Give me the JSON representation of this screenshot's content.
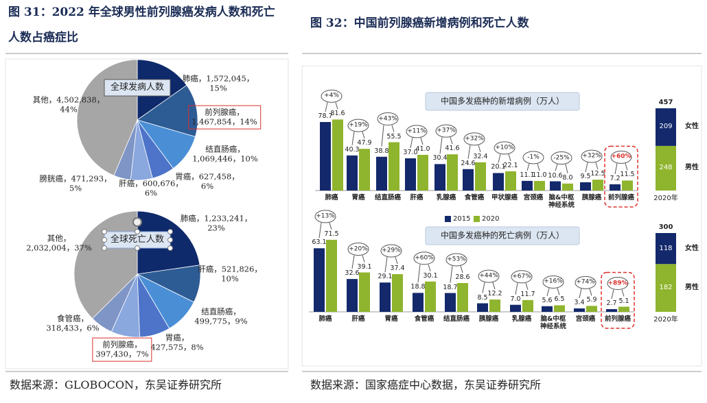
{
  "figures": [
    {
      "title": "图 31：2022 年全球男性前列腺癌发病人数和死亡人数占癌症比",
      "source": "数据来源：GLOBOCON，东吴证券研究所"
    },
    {
      "title": "图 32：中国前列腺癌新增病例和死亡人数",
      "source": "数据来源：国家癌症中心数据，东吴证券研究所"
    }
  ],
  "chart_data": [
    {
      "type": "pie",
      "title": "全球发病人数",
      "separator": "，",
      "categories": [
        "肺癌",
        "前列腺癌",
        "结直肠癌",
        "胃癌",
        "肝癌",
        "膀胱癌",
        "其他"
      ],
      "values": [
        1572045,
        1467854,
        1069446,
        627458,
        600676,
        471293,
        4502838
      ],
      "value_labels": [
        "1,572,045",
        "1,467,854",
        "1,069,446",
        "627,458",
        "600,676",
        "471,293",
        "4,502,838"
      ],
      "percent_labels": [
        "15%",
        "14%",
        "10%",
        "6%",
        "6%",
        "5%",
        "44%"
      ],
      "colors": [
        "#0f2a6b",
        "#2d5b94",
        "#4a8fd6",
        "#4d74c9",
        "#8aa7de",
        "#7f95c6",
        "#a6a6a6"
      ],
      "highlight_index": 1
    },
    {
      "type": "pie",
      "title": "全球死亡人数",
      "separator": "，",
      "categories": [
        "肺癌",
        "肝癌",
        "结直肠癌",
        "胃癌",
        "前列腺癌",
        "食管癌",
        "其他"
      ],
      "values": [
        1233241,
        521826,
        499775,
        427575,
        397430,
        318433,
        2032004
      ],
      "value_labels": [
        "1,233,241",
        "521,826",
        "499,775",
        "427,575",
        "397,430",
        "318,433",
        "2,032,004"
      ],
      "percent_labels": [
        "23%",
        "10%",
        "9%",
        "8%",
        "7%",
        "6%",
        "37%"
      ],
      "colors": [
        "#0f2a6b",
        "#2d5b94",
        "#4a8fd6",
        "#4d74c9",
        "#8aa7de",
        "#7f95c6",
        "#a6a6a6"
      ],
      "highlight_index": 4
    },
    {
      "type": "bar",
      "title": "中国多发癌种的新增病例（万人）",
      "legend": true,
      "categories": [
        "肺癌",
        "胃癌",
        "结直肠癌",
        "肝癌",
        "乳腺癌",
        "食管癌",
        "甲状腺癌",
        "宫颈癌",
        "脑&中枢神经系统",
        "胰腺癌",
        "前列腺癌"
      ],
      "series": [
        {
          "name": "2015",
          "color": "#13296b",
          "values": [
            78.7,
            40.3,
            38.8,
            37.0,
            30.4,
            24.6,
            20.1,
            11.1,
            10.6,
            9.5,
            7.2
          ],
          "value_labels": [
            "78.7",
            "40.3",
            "38.8",
            "37.0",
            "30.4",
            "24.6",
            "20.1",
            "11.1",
            "10.6",
            "9.5",
            "7.2"
          ]
        },
        {
          "name": "2020",
          "color": "#8fb42d",
          "values": [
            81.6,
            47.9,
            55.5,
            41.0,
            41.6,
            32.4,
            22.1,
            11.0,
            8.0,
            12.5,
            11.5
          ],
          "value_labels": [
            "81.6",
            "47.9",
            "55.5",
            "41.0",
            "41.6",
            "32.4",
            "22.1",
            "11.0",
            "8.0",
            "12.5",
            "11.5"
          ]
        }
      ],
      "change_labels": [
        "+4%",
        "+19%",
        "+43%",
        "+11%",
        "+37%",
        "+32%",
        "+10%",
        "-1%",
        "-25%",
        "+32%",
        "+60%"
      ],
      "highlight_index": 10
    },
    {
      "type": "stacked_bar",
      "categories": [
        "2020年"
      ],
      "series": [
        {
          "name": "男性",
          "color": "#8fb42d",
          "values": [
            248
          ]
        },
        {
          "name": "女性",
          "color": "#13296b",
          "values": [
            209
          ]
        }
      ],
      "total": 457
    },
    {
      "type": "bar",
      "title": "中国多发癌种的死亡病例（万人）",
      "legend": false,
      "categories": [
        "肺癌",
        "肝癌",
        "胃癌",
        "食管癌",
        "结直肠癌",
        "胰腺癌",
        "乳腺癌",
        "脑&中枢神经系统",
        "宫颈癌",
        "前列腺癌"
      ],
      "series": [
        {
          "name": "2015",
          "color": "#13296b",
          "values": [
            63.1,
            32.6,
            29.1,
            18.8,
            18.7,
            8.5,
            7.0,
            5.6,
            3.4,
            2.7
          ],
          "value_labels": [
            "63.1",
            "32.6",
            "29.1",
            "18.8",
            "18.7",
            "8.5",
            "7.0",
            "5.6",
            "3.4",
            "2.7"
          ]
        },
        {
          "name": "2020",
          "color": "#8fb42d",
          "values": [
            71.5,
            39.1,
            37.4,
            30.1,
            28.6,
            12.2,
            11.7,
            6.5,
            5.9,
            5.1
          ],
          "value_labels": [
            "71.5",
            "39.1",
            "37.4",
            "30.1",
            "28.6",
            "12.2",
            "11.7",
            "6.5",
            "5.9",
            "5.1"
          ]
        }
      ],
      "change_labels": [
        "+13%",
        "+20%",
        "+29%",
        "+60%",
        "+53%",
        "+44%",
        "+67%",
        "+16%",
        "+74%",
        "+89%"
      ],
      "highlight_index": 9
    },
    {
      "type": "stacked_bar",
      "categories": [
        "2020年"
      ],
      "series": [
        {
          "name": "男性",
          "color": "#8fb42d",
          "values": [
            182
          ]
        },
        {
          "name": "女性",
          "color": "#13296b",
          "values": [
            118
          ]
        }
      ],
      "total": 300
    }
  ]
}
